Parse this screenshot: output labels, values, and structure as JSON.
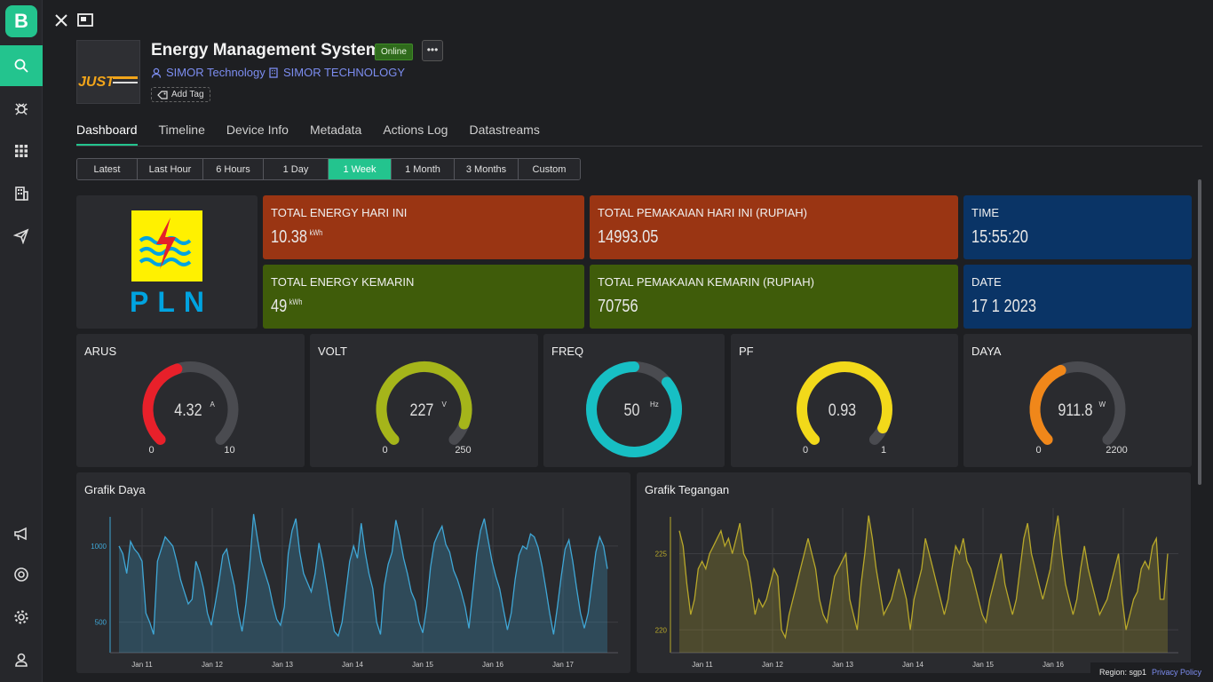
{
  "sidebar": {
    "logo": "B",
    "items": [
      {
        "icon": "search-icon",
        "active": true
      },
      {
        "icon": "bug-icon"
      },
      {
        "icon": "grid-icon"
      },
      {
        "icon": "building-icon"
      },
      {
        "icon": "send-icon"
      },
      {
        "icon": "megaphone-icon"
      },
      {
        "icon": "lifebuoy-icon"
      },
      {
        "icon": "gear-icon"
      },
      {
        "icon": "user-icon"
      }
    ]
  },
  "device": {
    "title": "Energy Management System",
    "status": "Online",
    "more": "•••",
    "owner": "SIMOR Technology",
    "org": "SIMOR TECHNOLOGY",
    "add_tag": "Add Tag",
    "image_text": "JUST"
  },
  "tabs": [
    "Dashboard",
    "Timeline",
    "Device Info",
    "Metadata",
    "Actions Log",
    "Datastreams"
  ],
  "ranges": [
    "Latest",
    "Last Hour",
    "6 Hours",
    "1 Day",
    "1 Week",
    "1 Month",
    "3 Months",
    "Custom"
  ],
  "active_range": "1 Week",
  "pln": {
    "text": "PLN"
  },
  "tiles": {
    "energy_today": {
      "label": "TOTAL ENERGY HARI INI",
      "value": "10.38",
      "unit": "kWh"
    },
    "cost_today": {
      "label": "TOTAL PEMAKAIAN HARI INI (RUPIAH)",
      "value": "14993.05"
    },
    "time": {
      "label": "TIME",
      "value": "15:55:20"
    },
    "energy_yesterday": {
      "label": "TOTAL ENERGY KEMARIN",
      "value": "49",
      "unit": "kWh"
    },
    "cost_yesterday": {
      "label": "TOTAL PEMAKAIAN KEMARIN (RUPIAH)",
      "value": "70756"
    },
    "date": {
      "label": "DATE",
      "value": "17 1 2023"
    }
  },
  "gauges": [
    {
      "label": "ARUS",
      "value": "4.32",
      "unit": "A",
      "min": "0",
      "max": "10",
      "fraction": 0.432,
      "color": "#e8202a"
    },
    {
      "label": "VOLT",
      "value": "227",
      "unit": "V",
      "min": "0",
      "max": "250",
      "fraction": 0.908,
      "color": "#a5b51a"
    },
    {
      "label": "FREQ",
      "value": "50",
      "unit": "Hz",
      "min": "",
      "max": "",
      "fraction": 0.86,
      "color": "#17bfc4"
    },
    {
      "label": "PF",
      "value": "0.93",
      "unit": "",
      "min": "0",
      "max": "1",
      "fraction": 0.93,
      "color": "#f2d91a"
    },
    {
      "label": "DAYA",
      "value": "911.8",
      "unit": "W",
      "min": "0",
      "max": "2200",
      "fraction": 0.414,
      "color": "#f0871a"
    }
  ],
  "chart_data": [
    {
      "type": "area",
      "title": "Grafik Daya",
      "color": "#3fa7d6",
      "yticks": [
        500,
        1000
      ],
      "ylim": [
        300,
        1250
      ],
      "xticks": [
        "Jan 11",
        "Jan 12",
        "Jan 13",
        "Jan 14",
        "Jan 15",
        "Jan 16",
        "Jan 17"
      ],
      "values": [
        1000,
        950,
        820,
        1030,
        980,
        950,
        900,
        560,
        500,
        420,
        900,
        980,
        1060,
        1030,
        1000,
        900,
        780,
        700,
        620,
        650,
        900,
        830,
        720,
        560,
        480,
        620,
        770,
        940,
        980,
        850,
        740,
        560,
        440,
        620,
        880,
        1210,
        1050,
        900,
        820,
        740,
        620,
        520,
        480,
        600,
        950,
        1100,
        1180,
        960,
        820,
        760,
        700,
        820,
        1020,
        900,
        740,
        580,
        440,
        410,
        500,
        700,
        900,
        1000,
        920,
        1150,
        960,
        820,
        720,
        500,
        420,
        740,
        880,
        960,
        1170,
        1060,
        920,
        820,
        700,
        640,
        500,
        430,
        600,
        860,
        1020,
        1080,
        1130,
        1010,
        960,
        840,
        780,
        700,
        600,
        460,
        700,
        950,
        1100,
        1180,
        1040,
        900,
        800,
        720,
        580,
        450,
        560,
        780,
        940,
        1000,
        980,
        1080,
        1060,
        990,
        870,
        720,
        560,
        420,
        600,
        800,
        980,
        1040,
        900,
        720,
        560,
        460,
        560,
        760,
        960,
        1060,
        1000,
        850
      ]
    },
    {
      "type": "area",
      "title": "Grafik Tegangan",
      "color": "#b8a82a",
      "yticks": [
        220,
        225
      ],
      "ylim": [
        218.5,
        228
      ],
      "xticks": [
        "Jan 11",
        "Jan 12",
        "Jan 13",
        "Jan 14",
        "Jan 15",
        "Jan 16"
      ],
      "values": [
        226.5,
        225.5,
        223,
        221,
        222,
        224,
        224.5,
        224,
        225,
        225.5,
        226,
        226.5,
        225.5,
        226,
        225,
        226,
        227,
        225,
        224.5,
        223,
        221,
        222,
        221.5,
        222,
        223,
        224,
        223.5,
        220,
        219.5,
        221,
        222,
        223,
        224,
        225,
        226,
        225,
        224,
        222,
        221,
        220.5,
        222,
        223.5,
        224,
        224.5,
        225,
        222,
        221,
        220,
        223,
        225,
        227.5,
        226,
        224,
        222.5,
        221,
        221.5,
        222,
        223,
        224,
        223,
        222,
        220,
        222,
        223,
        224,
        226,
        225,
        224,
        223,
        222,
        221,
        222,
        224,
        225.5,
        225,
        226,
        224.5,
        224,
        223,
        222,
        221,
        220.5,
        222,
        223,
        224,
        225,
        223,
        222,
        221,
        222,
        224,
        226,
        227,
        225,
        224,
        223,
        222,
        223,
        224,
        226,
        227.5,
        225,
        223,
        222,
        221,
        222,
        224,
        225.5,
        224,
        223,
        222,
        221,
        221.5,
        222,
        223,
        224,
        225,
        222,
        220,
        221,
        222,
        222.5,
        224,
        224.5,
        224,
        225.5,
        226,
        222,
        222,
        225
      ]
    }
  ],
  "footer": {
    "region": "Region: sgp1",
    "privacy": "Privacy Policy"
  }
}
